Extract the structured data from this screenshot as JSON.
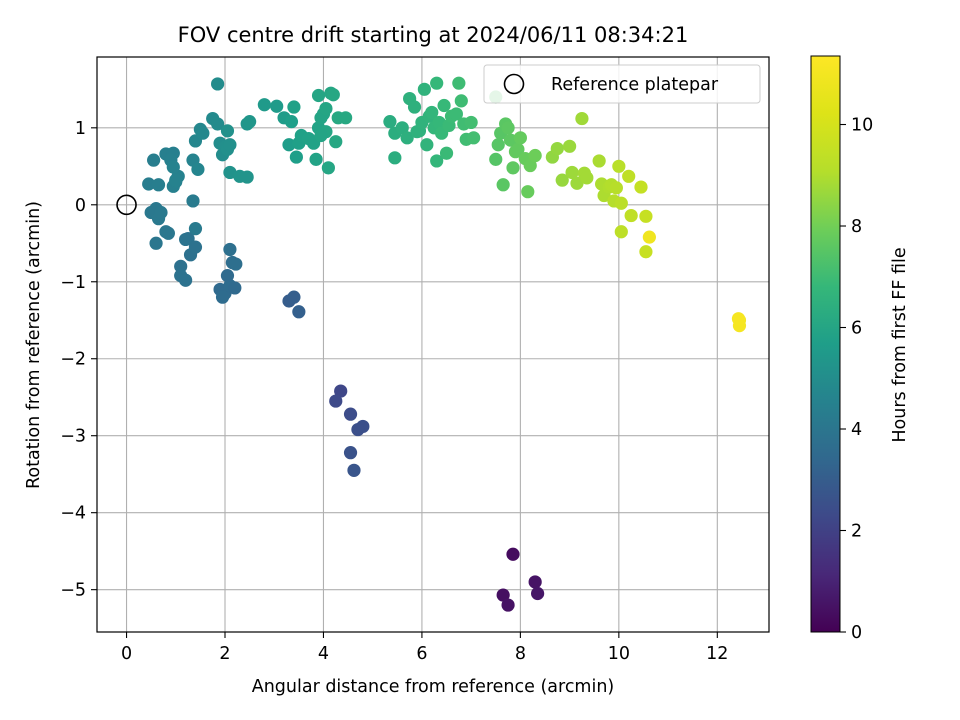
{
  "chart_data": {
    "type": "scatter",
    "title": "FOV centre drift starting at 2024/06/11 08:34:21",
    "xlabel": "Angular distance from reference (arcmin)",
    "ylabel": "Rotation from reference (arcmin)",
    "colorbar_label": "Hours from first FF file",
    "xlim": [
      -0.6,
      13.05
    ],
    "ylim": [
      -5.55,
      1.92
    ],
    "clim": [
      0,
      11.35
    ],
    "colormap": "viridis",
    "grid": true,
    "legend_placement": "top-right",
    "x_ticks": [
      "0",
      "2",
      "4",
      "6",
      "8",
      "10",
      "12"
    ],
    "x_tick_values": [
      0,
      2,
      4,
      6,
      8,
      10,
      12
    ],
    "y_ticks": [
      "1",
      "0",
      "−1",
      "−2",
      "−3",
      "−4",
      "−5"
    ],
    "y_tick_values": [
      1,
      0,
      -1,
      -2,
      -3,
      -4,
      -5
    ],
    "colorbar_ticks": [
      "0",
      "2",
      "4",
      "6",
      "8",
      "10"
    ],
    "colorbar_tick_values": [
      0,
      2,
      4,
      6,
      8,
      10
    ],
    "reference": {
      "name": "Reference platepar",
      "x": 0,
      "y": 0
    },
    "points": [
      [
        7.85,
        -4.54,
        0.3
      ],
      [
        7.65,
        -5.07,
        0.4
      ],
      [
        7.75,
        -5.2,
        0.5
      ],
      [
        8.3,
        -4.9,
        0.55
      ],
      [
        8.35,
        -5.05,
        0.6
      ],
      [
        4.35,
        -2.42,
        2.2
      ],
      [
        4.25,
        -2.55,
        2.3
      ],
      [
        4.55,
        -2.72,
        2.4
      ],
      [
        4.8,
        -2.88,
        2.5
      ],
      [
        4.7,
        -2.92,
        2.5
      ],
      [
        4.55,
        -3.22,
        2.6
      ],
      [
        4.62,
        -3.45,
        2.7
      ],
      [
        3.3,
        -1.25,
        3.0
      ],
      [
        3.4,
        -1.2,
        3.05
      ],
      [
        3.5,
        -1.39,
        3.1
      ],
      [
        1.9,
        -1.1,
        3.5
      ],
      [
        2.0,
        -1.15,
        3.55
      ],
      [
        2.1,
        -1.05,
        3.6
      ],
      [
        1.95,
        -1.2,
        3.6
      ],
      [
        2.2,
        -1.08,
        3.5
      ],
      [
        2.05,
        -0.92,
        3.55
      ],
      [
        2.15,
        -0.75,
        3.65
      ],
      [
        2.22,
        -0.77,
        3.7
      ],
      [
        2.1,
        -0.58,
        3.75
      ],
      [
        1.3,
        -0.65,
        3.8
      ],
      [
        1.25,
        -0.44,
        3.85
      ],
      [
        1.4,
        -0.55,
        3.85
      ],
      [
        1.2,
        -0.45,
        3.9
      ],
      [
        1.1,
        -0.8,
        3.8
      ],
      [
        1.1,
        -0.92,
        3.85
      ],
      [
        1.2,
        -0.98,
        3.85
      ],
      [
        0.6,
        -0.5,
        4.0
      ],
      [
        0.8,
        -0.35,
        4.05
      ],
      [
        0.85,
        -0.37,
        4.05
      ],
      [
        0.5,
        -0.1,
        4.1
      ],
      [
        0.6,
        -0.05,
        4.1
      ],
      [
        0.65,
        -0.18,
        4.15
      ],
      [
        0.7,
        -0.1,
        4.15
      ],
      [
        1.4,
        -0.31,
        4.2
      ],
      [
        1.35,
        0.05,
        4.25
      ],
      [
        0.45,
        0.27,
        4.3
      ],
      [
        0.55,
        0.58,
        4.35
      ],
      [
        0.65,
        0.26,
        4.35
      ],
      [
        0.8,
        0.66,
        4.4
      ],
      [
        0.95,
        0.67,
        4.4
      ],
      [
        0.9,
        0.58,
        4.45
      ],
      [
        0.95,
        0.24,
        4.45
      ],
      [
        1.0,
        0.3,
        4.5
      ],
      [
        1.05,
        0.37,
        4.5
      ],
      [
        0.95,
        0.49,
        4.55
      ],
      [
        1.0,
        0.32,
        4.55
      ],
      [
        1.35,
        0.58,
        4.6
      ],
      [
        1.45,
        0.46,
        4.65
      ],
      [
        1.4,
        0.83,
        4.7
      ],
      [
        1.5,
        0.98,
        4.75
      ],
      [
        1.55,
        0.93,
        4.8
      ],
      [
        1.75,
        1.12,
        4.85
      ],
      [
        1.85,
        1.05,
        4.9
      ],
      [
        1.85,
        1.57,
        4.95
      ],
      [
        1.9,
        0.8,
        5.0
      ],
      [
        1.95,
        0.65,
        5.0
      ],
      [
        2.0,
        0.75,
        5.05
      ],
      [
        2.05,
        0.72,
        5.1
      ],
      [
        2.1,
        0.78,
        5.1
      ],
      [
        2.05,
        0.96,
        5.15
      ],
      [
        2.1,
        0.42,
        5.2
      ],
      [
        2.3,
        0.37,
        5.25
      ],
      [
        2.45,
        0.36,
        5.25
      ],
      [
        2.45,
        1.05,
        5.3
      ],
      [
        2.5,
        1.08,
        5.35
      ],
      [
        2.8,
        1.3,
        5.5
      ],
      [
        3.05,
        1.28,
        5.55
      ],
      [
        3.2,
        1.13,
        5.6
      ],
      [
        3.3,
        0.78,
        5.65
      ],
      [
        3.35,
        1.08,
        5.7
      ],
      [
        3.45,
        0.62,
        5.7
      ],
      [
        3.5,
        0.8,
        5.75
      ],
      [
        3.4,
        1.27,
        5.8
      ],
      [
        3.55,
        0.9,
        5.8
      ],
      [
        3.7,
        0.86,
        5.85
      ],
      [
        3.8,
        0.8,
        5.85
      ],
      [
        3.85,
        0.59,
        5.9
      ],
      [
        3.9,
        1.0,
        5.9
      ],
      [
        3.95,
        1.13,
        5.95
      ],
      [
        4.0,
        1.18,
        5.95
      ],
      [
        4.05,
        1.25,
        6.0
      ],
      [
        3.9,
        1.42,
        6.0
      ],
      [
        4.1,
        0.48,
        6.05
      ],
      [
        4.15,
        1.45,
        6.05
      ],
      [
        4.2,
        1.43,
        6.1
      ],
      [
        4.25,
        0.82,
        6.1
      ],
      [
        4.3,
        1.13,
        6.15
      ],
      [
        4.45,
        1.13,
        6.15
      ],
      [
        4.05,
        0.95,
        6.0
      ],
      [
        3.95,
        0.9,
        5.95
      ],
      [
        5.35,
        1.08,
        6.3
      ],
      [
        5.45,
        0.93,
        6.35
      ],
      [
        5.45,
        0.61,
        6.35
      ],
      [
        5.6,
        1.0,
        6.4
      ],
      [
        5.7,
        0.87,
        6.45
      ],
      [
        5.75,
        1.38,
        6.5
      ],
      [
        5.85,
        1.27,
        6.5
      ],
      [
        5.9,
        0.95,
        6.55
      ],
      [
        5.95,
        0.96,
        6.55
      ],
      [
        6.0,
        1.07,
        6.6
      ],
      [
        6.05,
        1.5,
        6.6
      ],
      [
        6.1,
        0.78,
        6.65
      ],
      [
        6.15,
        1.15,
        6.65
      ],
      [
        6.2,
        1.2,
        6.7
      ],
      [
        6.25,
        1.0,
        6.75
      ],
      [
        6.3,
        0.57,
        6.75
      ],
      [
        6.3,
        1.58,
        6.8
      ],
      [
        6.35,
        1.07,
        6.8
      ],
      [
        6.4,
        0.93,
        6.85
      ],
      [
        6.45,
        1.29,
        6.85
      ],
      [
        6.5,
        0.67,
        6.9
      ],
      [
        6.55,
        1.03,
        6.9
      ],
      [
        6.6,
        1.15,
        6.95
      ],
      [
        6.7,
        1.18,
        6.95
      ],
      [
        6.75,
        1.58,
        7.0
      ],
      [
        6.8,
        1.35,
        7.0
      ],
      [
        6.85,
        1.05,
        7.05
      ],
      [
        6.9,
        0.85,
        7.05
      ],
      [
        7.0,
        1.07,
        7.1
      ],
      [
        7.05,
        0.87,
        7.1
      ],
      [
        7.5,
        1.4,
        7.4
      ],
      [
        7.5,
        0.59,
        7.45
      ],
      [
        7.55,
        0.78,
        7.5
      ],
      [
        7.6,
        0.93,
        7.5
      ],
      [
        7.65,
        0.26,
        7.55
      ],
      [
        7.7,
        1.05,
        7.55
      ],
      [
        7.75,
        1.0,
        7.6
      ],
      [
        7.8,
        0.84,
        7.6
      ],
      [
        7.85,
        0.48,
        7.65
      ],
      [
        7.9,
        0.69,
        7.7
      ],
      [
        7.95,
        0.72,
        7.7
      ],
      [
        8.0,
        0.87,
        7.75
      ],
      [
        8.1,
        0.6,
        7.8
      ],
      [
        8.15,
        0.17,
        7.8
      ],
      [
        8.2,
        0.51,
        7.85
      ],
      [
        8.3,
        0.64,
        7.9
      ],
      [
        8.65,
        0.62,
        8.5
      ],
      [
        8.75,
        0.73,
        8.55
      ],
      [
        8.85,
        0.32,
        8.6
      ],
      [
        9.0,
        0.76,
        8.65
      ],
      [
        9.05,
        0.42,
        8.7
      ],
      [
        9.15,
        0.28,
        8.7
      ],
      [
        9.25,
        1.12,
        8.75
      ],
      [
        9.3,
        0.41,
        8.8
      ],
      [
        9.35,
        0.35,
        8.8
      ],
      [
        9.6,
        0.57,
        8.9
      ],
      [
        9.65,
        0.27,
        8.95
      ],
      [
        9.7,
        0.12,
        8.95
      ],
      [
        9.8,
        0.23,
        9.0
      ],
      [
        9.85,
        0.26,
        9.05
      ],
      [
        9.9,
        0.05,
        9.1
      ],
      [
        9.95,
        0.22,
        9.15
      ],
      [
        10.0,
        0.5,
        9.2
      ],
      [
        10.05,
        0.02,
        9.25
      ],
      [
        10.05,
        -0.35,
        9.3
      ],
      [
        10.2,
        0.37,
        9.35
      ],
      [
        10.25,
        -0.14,
        9.4
      ],
      [
        10.45,
        0.23,
        9.5
      ],
      [
        10.55,
        -0.15,
        9.55
      ],
      [
        10.55,
        -0.61,
        9.6
      ],
      [
        10.62,
        -0.42,
        10.9
      ],
      [
        12.45,
        -1.5,
        11.0
      ],
      [
        12.45,
        -1.57,
        11.05
      ],
      [
        12.43,
        -1.48,
        11.1
      ]
    ]
  }
}
